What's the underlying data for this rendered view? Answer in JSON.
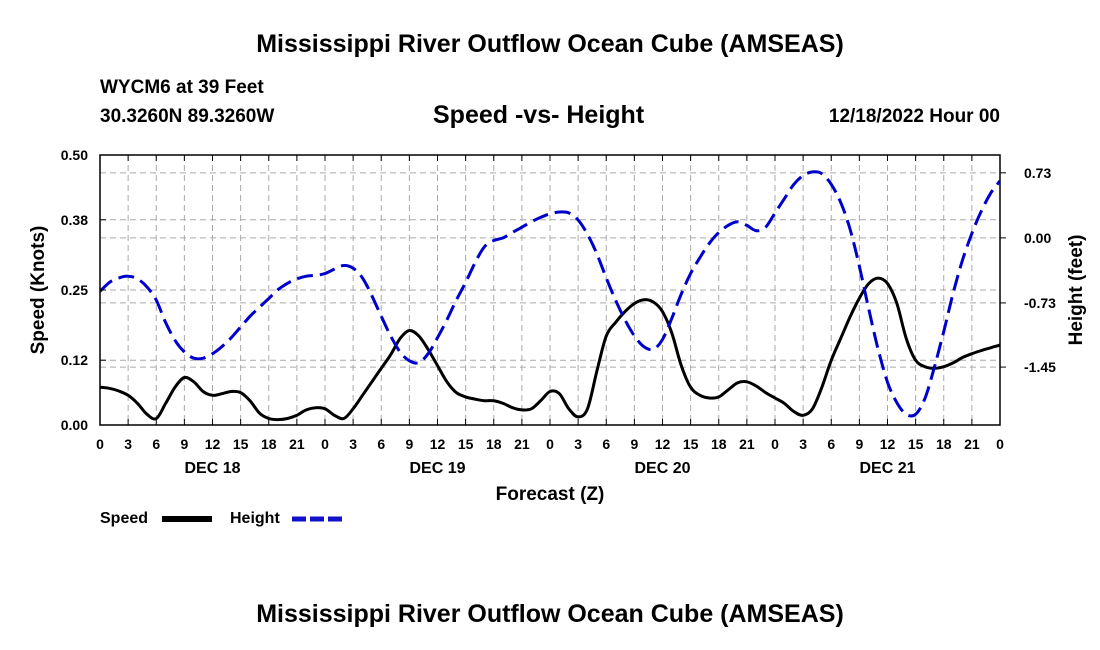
{
  "header": {
    "title": "Mississippi River Outflow Ocean Cube (AMSEAS)",
    "station": "WYCM6 at 39 Feet",
    "coords": "30.3260N  89.3260W",
    "subtitle": "Speed -vs- Height",
    "date": "12/18/2022 Hour 00"
  },
  "legend": {
    "speed_label": "Speed",
    "height_label": "Height"
  },
  "footer": {
    "title": "Mississippi River Outflow Ocean Cube (AMSEAS)"
  },
  "chart_data": {
    "type": "line",
    "title": "Speed -vs- Height",
    "xlabel": "Forecast (Z)",
    "ylabel": "Speed (Knots)",
    "y2label": "Height (feet)",
    "xlim": [
      0,
      96
    ],
    "ylim": [
      0,
      0.5
    ],
    "y2lim": [
      -2.1,
      0.93
    ],
    "x_ticks": [
      0,
      3,
      6,
      9,
      12,
      15,
      18,
      21,
      24,
      27,
      30,
      33,
      36,
      39,
      42,
      45,
      48,
      51,
      54,
      57,
      60,
      63,
      66,
      69,
      72,
      75,
      78,
      81,
      84,
      87,
      90,
      93,
      96
    ],
    "x_tick_labels": [
      "0",
      "3",
      "6",
      "9",
      "12",
      "15",
      "18",
      "21",
      "0",
      "3",
      "6",
      "9",
      "12",
      "15",
      "18",
      "21",
      "0",
      "3",
      "6",
      "9",
      "12",
      "15",
      "18",
      "21",
      "0",
      "3",
      "6",
      "9",
      "12",
      "15",
      "18",
      "21",
      "0"
    ],
    "day_labels": [
      {
        "x": 12,
        "label": "DEC 18"
      },
      {
        "x": 36,
        "label": "DEC 19"
      },
      {
        "x": 60,
        "label": "DEC 20"
      },
      {
        "x": 84,
        "label": "DEC 21"
      }
    ],
    "y_ticks": [
      0.0,
      0.12,
      0.25,
      0.38,
      0.5
    ],
    "y_tick_labels": [
      "0.00",
      "0.12",
      "0.25",
      "0.38",
      "0.50"
    ],
    "y2_ticks": [
      0.73,
      0.0,
      -0.73,
      -1.45
    ],
    "y2_tick_labels": [
      "0.73",
      "0.00",
      "-0.73",
      "-1.45"
    ],
    "grid": true,
    "legend_position": "bottom-left",
    "series": [
      {
        "name": "Speed",
        "axis": "left",
        "color": "#000000",
        "dash": "solid",
        "x": [
          0,
          1,
          2,
          3,
          4,
          5,
          6,
          7,
          8,
          9,
          10,
          11,
          12,
          13,
          14,
          15,
          16,
          17,
          18,
          19,
          20,
          21,
          22,
          23,
          24,
          25,
          26,
          27,
          28,
          29,
          30,
          31,
          32,
          33,
          34,
          35,
          36,
          37,
          38,
          39,
          40,
          41,
          42,
          43,
          44,
          45,
          46,
          47,
          48,
          49,
          50,
          51,
          52,
          53,
          54,
          55,
          56,
          57,
          58,
          59,
          60,
          61,
          62,
          63,
          64,
          65,
          66,
          67,
          68,
          69,
          70,
          71,
          72,
          73,
          74,
          75,
          76,
          77,
          78,
          79,
          80,
          81,
          82,
          83,
          84,
          85,
          86,
          87,
          88,
          89,
          90,
          91,
          92,
          93,
          94,
          95,
          96
        ],
        "values": [
          0.07,
          0.068,
          0.063,
          0.055,
          0.04,
          0.02,
          0.012,
          0.04,
          0.07,
          0.088,
          0.08,
          0.062,
          0.055,
          0.058,
          0.062,
          0.06,
          0.045,
          0.022,
          0.012,
          0.01,
          0.012,
          0.018,
          0.028,
          0.032,
          0.03,
          0.018,
          0.012,
          0.03,
          0.055,
          0.08,
          0.105,
          0.13,
          0.16,
          0.175,
          0.165,
          0.14,
          0.11,
          0.08,
          0.06,
          0.052,
          0.048,
          0.045,
          0.045,
          0.04,
          0.032,
          0.028,
          0.03,
          0.045,
          0.062,
          0.058,
          0.03,
          0.015,
          0.03,
          0.1,
          0.165,
          0.19,
          0.21,
          0.225,
          0.232,
          0.228,
          0.21,
          0.17,
          0.11,
          0.07,
          0.055,
          0.05,
          0.052,
          0.065,
          0.078,
          0.08,
          0.072,
          0.06,
          0.05,
          0.04,
          0.025,
          0.018,
          0.03,
          0.07,
          0.12,
          0.16,
          0.2,
          0.235,
          0.262,
          0.272,
          0.262,
          0.225,
          0.16,
          0.12,
          0.108,
          0.105,
          0.108,
          0.115,
          0.125,
          0.132,
          0.138,
          0.143,
          0.148
        ]
      },
      {
        "name": "Height",
        "axis": "right",
        "color": "#0000cc",
        "dash": "dashed",
        "x": [
          0,
          1,
          2,
          3,
          4,
          5,
          6,
          7,
          8,
          9,
          10,
          11,
          12,
          13,
          14,
          15,
          16,
          17,
          18,
          19,
          20,
          21,
          22,
          23,
          24,
          25,
          26,
          27,
          28,
          29,
          30,
          31,
          32,
          33,
          34,
          35,
          36,
          37,
          38,
          39,
          40,
          41,
          42,
          43,
          44,
          45,
          46,
          47,
          48,
          49,
          50,
          51,
          52,
          53,
          54,
          55,
          56,
          57,
          58,
          59,
          60,
          61,
          62,
          63,
          64,
          65,
          66,
          67,
          68,
          69,
          70,
          71,
          72,
          73,
          74,
          75,
          76,
          77,
          78,
          79,
          80,
          81,
          82,
          83,
          84,
          85,
          86,
          87,
          88,
          89,
          90,
          91,
          92,
          93,
          94,
          95,
          96
        ],
        "values": [
          -0.6,
          -0.5,
          -0.45,
          -0.43,
          -0.46,
          -0.55,
          -0.7,
          -0.95,
          -1.15,
          -1.28,
          -1.35,
          -1.35,
          -1.3,
          -1.22,
          -1.12,
          -1.0,
          -0.88,
          -0.78,
          -0.68,
          -0.58,
          -0.51,
          -0.46,
          -0.43,
          -0.42,
          -0.4,
          -0.35,
          -0.31,
          -0.34,
          -0.45,
          -0.65,
          -0.88,
          -1.1,
          -1.28,
          -1.38,
          -1.4,
          -1.3,
          -1.12,
          -0.92,
          -0.7,
          -0.5,
          -0.28,
          -0.1,
          -0.03,
          0.0,
          0.06,
          0.12,
          0.18,
          0.23,
          0.27,
          0.29,
          0.28,
          0.2,
          0.04,
          -0.18,
          -0.45,
          -0.7,
          -0.92,
          -1.1,
          -1.22,
          -1.25,
          -1.14,
          -0.9,
          -0.63,
          -0.4,
          -0.22,
          -0.06,
          0.06,
          0.14,
          0.18,
          0.14,
          0.08,
          0.12,
          0.28,
          0.44,
          0.6,
          0.7,
          0.74,
          0.72,
          0.6,
          0.4,
          0.1,
          -0.32,
          -0.8,
          -1.25,
          -1.62,
          -1.85,
          -1.98,
          -1.98,
          -1.8,
          -1.45,
          -1.05,
          -0.62,
          -0.25,
          0.05,
          0.3,
          0.5,
          0.64
        ]
      }
    ]
  }
}
